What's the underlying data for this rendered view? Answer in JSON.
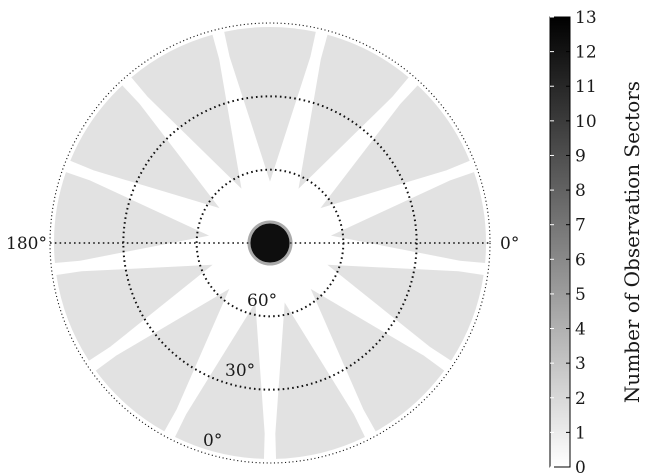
{
  "chart_data": {
    "type": "heatmap",
    "projection": "polar",
    "title": "",
    "azimuth_labels": [
      {
        "text": "0°",
        "azimuth_deg": 0
      },
      {
        "text": "180°",
        "azimuth_deg": 180
      }
    ],
    "elevation_rings": [
      {
        "text": "60°",
        "elevation_deg": 60
      },
      {
        "text": "30°",
        "elevation_deg": 30
      },
      {
        "text": "0°",
        "elevation_deg": 0
      }
    ],
    "observation_sectors": {
      "count": 13,
      "outer_elevation_deg": 0,
      "inner_elevation_deg": 12,
      "point_elevation_deg": 60,
      "center_level": 13,
      "center_radius_elevation_deg": 82
    },
    "colorbar": {
      "label": "Number of Observation Sectors",
      "min": 0,
      "max": 13,
      "ticks": [
        "0",
        "1",
        "2",
        "3",
        "4",
        "5",
        "6",
        "7",
        "8",
        "9",
        "10",
        "11",
        "12",
        "13"
      ],
      "low_color": "#ffffff",
      "high_color": "#000000"
    }
  }
}
